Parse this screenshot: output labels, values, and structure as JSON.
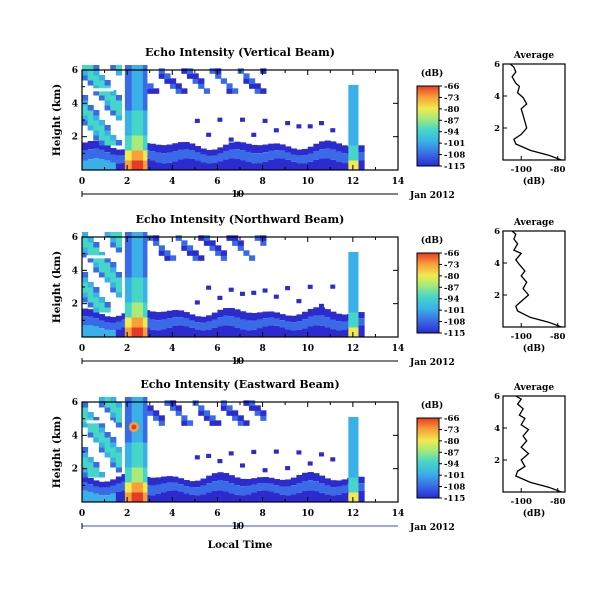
{
  "xlabel": "Local Time",
  "colorbar_unit": "(dB)",
  "colorbar_ticks": [
    "-66",
    "-73",
    "-80",
    "-87",
    "-94",
    "-101",
    "-108",
    "-115"
  ],
  "colorbar_range": [
    -115,
    -66
  ],
  "colors": [
    "#2b2bd0",
    "#3a6be6",
    "#3ab0e8",
    "#45d6c8",
    "#a9ea78",
    "#f1ea4d",
    "#f7a03a",
    "#e83a25"
  ],
  "date_axis": {
    "label": "10",
    "month": "Jan 2012"
  },
  "x_ticks": [
    "0",
    "2",
    "4",
    "6",
    "8",
    "10",
    "12",
    "14"
  ],
  "y_ticks": [
    "6",
    "4",
    "2"
  ],
  "panels": [
    {
      "title": "Echo Intensity (Vertical Beam)",
      "ylabel": "Height (km)",
      "avg_title": "Average",
      "avg_xlabel": "(dB)",
      "avg_xticks": [
        "-100",
        "-80"
      ],
      "avg_yticks": [
        "6",
        "4",
        "2"
      ]
    },
    {
      "title": "Echo Intensity (Northward Beam)",
      "ylabel": "Height (km)",
      "avg_title": "Average",
      "avg_xlabel": "(dB)",
      "avg_xticks": [
        "-100",
        "-80"
      ],
      "avg_yticks": [
        "6",
        "4",
        "2"
      ]
    },
    {
      "title": "Echo Intensity (Eastward Beam)",
      "ylabel": "Height (km)",
      "avg_title": "Average",
      "avg_xlabel": "(dB)",
      "avg_xticks": [
        "-100",
        "-80"
      ],
      "avg_yticks": [
        "6",
        "4",
        "2"
      ]
    }
  ],
  "chart_data": [
    {
      "type": "heatmap",
      "title": "Echo Intensity (Vertical Beam)",
      "xlabel": "",
      "ylabel": "Height (km)",
      "xlim": [
        0,
        14
      ],
      "ylim": [
        0,
        6
      ],
      "colorbar": {
        "label": "(dB)",
        "range": [
          -115,
          -66
        ]
      },
      "features": [
        {
          "description": "strong echo column",
          "x_range": [
            1.9,
            2.9
          ],
          "peak_x": 2.5,
          "peak_dB": -66
        },
        {
          "description": "low-level cloud layer",
          "x_range": [
            0,
            12.3
          ],
          "height_range": [
            0.4,
            1.5
          ],
          "typical_dB": -108
        },
        {
          "description": "mid-level cloud patches",
          "x_range": [
            0,
            8
          ],
          "height_range": [
            4.6,
            6
          ],
          "typical_dB": -108
        },
        {
          "description": "late echo column",
          "x_range": [
            11.8,
            12.3
          ],
          "peak_dB": -80
        }
      ]
    },
    {
      "type": "line",
      "title": "Average",
      "xlabel": "(dB)",
      "ylabel": "",
      "xlim": [
        -110,
        -76
      ],
      "ylim": [
        0,
        6
      ],
      "series": [
        {
          "x": [
            -78,
            -85,
            -95,
            -103,
            -104,
            -100,
            -97,
            -98,
            -99,
            -100,
            -97,
            -99,
            -102,
            -101,
            -103,
            -105,
            -103,
            -104,
            -106
          ],
          "y": [
            0,
            0.3,
            0.6,
            1.0,
            1.3,
            1.6,
            2.0,
            2.4,
            2.8,
            3.2,
            3.5,
            3.9,
            4.2,
            4.6,
            4.8,
            5.2,
            5.5,
            5.8,
            6.0
          ]
        }
      ]
    },
    {
      "type": "heatmap",
      "title": "Echo Intensity (Northward Beam)",
      "xlabel": "",
      "ylabel": "Height (km)",
      "xlim": [
        0,
        14
      ],
      "ylim": [
        0,
        6
      ],
      "colorbar": {
        "label": "(dB)",
        "range": [
          -115,
          -66
        ]
      },
      "features": [
        {
          "description": "strong echo column",
          "x_range": [
            1.9,
            2.9
          ],
          "peak_x": 2.5,
          "peak_dB": -66
        },
        {
          "description": "low-level cloud layer",
          "x_range": [
            0,
            12.3
          ],
          "height_range": [
            0.4,
            1.5
          ],
          "typical_dB": -108
        },
        {
          "description": "mid-level cloud patches",
          "x_range": [
            0,
            8
          ],
          "height_range": [
            4.6,
            6
          ],
          "typical_dB": -108
        },
        {
          "description": "late echo column",
          "x_range": [
            11.8,
            12.3
          ],
          "peak_dB": -80
        }
      ]
    },
    {
      "type": "line",
      "title": "Average",
      "xlabel": "(dB)",
      "ylabel": "",
      "xlim": [
        -110,
        -76
      ],
      "ylim": [
        0,
        6
      ],
      "series": [
        {
          "x": [
            -78,
            -85,
            -95,
            -102,
            -103,
            -100,
            -96,
            -99,
            -97,
            -100,
            -98,
            -101,
            -103,
            -100,
            -104,
            -102,
            -104,
            -103,
            -105
          ],
          "y": [
            0,
            0.3,
            0.6,
            1.0,
            1.3,
            1.6,
            2.0,
            2.4,
            2.8,
            3.2,
            3.5,
            3.9,
            4.2,
            4.6,
            4.8,
            5.2,
            5.5,
            5.8,
            6.0
          ]
        }
      ]
    },
    {
      "type": "heatmap",
      "title": "Echo Intensity (Eastward Beam)",
      "xlabel": "Local Time",
      "ylabel": "Height (km)",
      "xlim": [
        0,
        14
      ],
      "ylim": [
        0,
        6
      ],
      "colorbar": {
        "label": "(dB)",
        "range": [
          -115,
          -66
        ]
      },
      "features": [
        {
          "description": "strong echo column",
          "x_range": [
            1.9,
            2.9
          ],
          "peak_x": 2.3,
          "peak_dB": -66
        },
        {
          "description": "elevated strong echo",
          "x": 2.3,
          "height": 4.5,
          "peak_dB": -73
        },
        {
          "description": "low-level cloud layer",
          "x_range": [
            0,
            12.3
          ],
          "height_range": [
            0.4,
            1.5
          ],
          "typical_dB": -108
        },
        {
          "description": "mid-level cloud patches",
          "x_range": [
            0,
            8
          ],
          "height_range": [
            4.6,
            6
          ],
          "typical_dB": -108
        },
        {
          "description": "late echo column",
          "x_range": [
            11.8,
            12.3
          ],
          "peak_dB": -80
        }
      ]
    },
    {
      "type": "line",
      "title": "Average",
      "xlabel": "(dB)",
      "ylabel": "",
      "xlim": [
        -110,
        -76
      ],
      "ylim": [
        0,
        6
      ],
      "series": [
        {
          "x": [
            -78,
            -85,
            -95,
            -103,
            -102,
            -98,
            -100,
            -96,
            -100,
            -97,
            -99,
            -96,
            -100,
            -98,
            -101,
            -99,
            -102,
            -100,
            -103
          ],
          "y": [
            0,
            0.3,
            0.6,
            1.0,
            1.3,
            1.6,
            2.0,
            2.4,
            2.8,
            3.2,
            3.5,
            3.9,
            4.2,
            4.6,
            4.8,
            5.2,
            5.5,
            5.8,
            6.0
          ]
        }
      ]
    }
  ]
}
